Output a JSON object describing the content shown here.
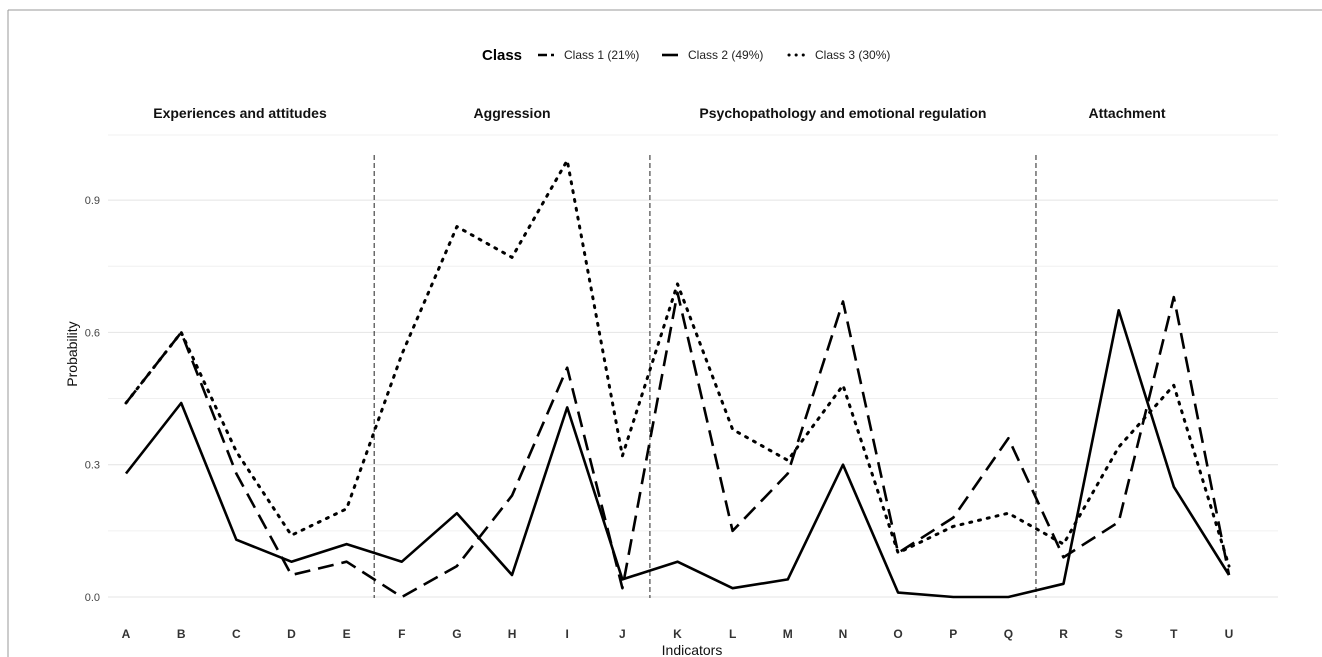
{
  "chart_data": {
    "type": "line",
    "xlabel": "Indicators",
    "ylabel": "Probability",
    "ylim": [
      0.0,
      1.0
    ],
    "yticks": [
      "0.0",
      "0.3",
      "0.6",
      "0.9"
    ],
    "grid": true,
    "legend": {
      "title": "Class",
      "placement": "top"
    },
    "categories": [
      "A",
      "B",
      "C",
      "D",
      "E",
      "F",
      "G",
      "H",
      "I",
      "J",
      "K",
      "L",
      "M",
      "N",
      "O",
      "P",
      "Q",
      "R",
      "S",
      "T",
      "U"
    ],
    "sections": [
      {
        "label": "Experiences and attitudes",
        "from": "A",
        "to": "E"
      },
      {
        "label": "Aggression",
        "from": "F",
        "to": "J"
      },
      {
        "label": "Psychopathology and emotional regulation",
        "from": "K",
        "to": "Q"
      },
      {
        "label": "Attachment",
        "from": "R",
        "to": "U"
      }
    ],
    "series": [
      {
        "name": "Class 1 (21%)",
        "style": "dashed",
        "values": [
          0.44,
          0.6,
          0.28,
          0.05,
          0.08,
          0.0,
          0.07,
          0.23,
          0.52,
          0.02,
          0.69,
          0.15,
          0.28,
          0.67,
          0.1,
          0.18,
          0.36,
          0.09,
          0.17,
          0.68,
          0.05
        ]
      },
      {
        "name": "Class 2 (49%)",
        "style": "solid",
        "values": [
          0.28,
          0.44,
          0.13,
          0.08,
          0.12,
          0.08,
          0.19,
          0.05,
          0.43,
          0.04,
          0.08,
          0.02,
          0.04,
          0.3,
          0.01,
          0.0,
          0.0,
          0.03,
          0.65,
          0.25,
          0.05
        ]
      },
      {
        "name": "Class 3 (30%)",
        "style": "dotted",
        "values": [
          0.44,
          0.6,
          0.33,
          0.14,
          0.2,
          0.55,
          0.84,
          0.77,
          0.99,
          0.32,
          0.71,
          0.38,
          0.31,
          0.48,
          0.1,
          0.16,
          0.19,
          0.12,
          0.34,
          0.48,
          0.07
        ]
      }
    ],
    "colors": {
      "line": "#000000",
      "grid": "#e4e4e4",
      "divider": "#222222"
    }
  }
}
